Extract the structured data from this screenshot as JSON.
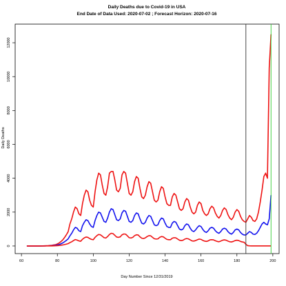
{
  "chart_data": {
    "type": "line",
    "title": "Daily Deaths due to Covid-19 in  USA",
    "subtitle": "End Date of Data Used:  2020-07-02 ; Forecast Horizon:  2020-07-16",
    "xlabel": "Day Number Since 12/31/2019",
    "ylabel": "Daily Deaths",
    "xlim": [
      56.5,
      203.5
    ],
    "ylim": [
      -450,
      13100
    ],
    "xticks": [
      60,
      80,
      100,
      120,
      140,
      160,
      180,
      200
    ],
    "yticks": [
      0,
      2000,
      4000,
      6000,
      8000,
      10000,
      12000
    ],
    "vlines": [
      {
        "value": 185,
        "color": "#333333"
      },
      {
        "value": 199,
        "color": "#33cc33"
      }
    ],
    "x": [
      63,
      64,
      65,
      66,
      67,
      68,
      69,
      70,
      71,
      72,
      73,
      74,
      75,
      76,
      77,
      78,
      79,
      80,
      81,
      82,
      83,
      84,
      85,
      86,
      87,
      88,
      89,
      90,
      91,
      92,
      93,
      94,
      95,
      96,
      97,
      98,
      99,
      100,
      101,
      102,
      103,
      104,
      105,
      106,
      107,
      108,
      109,
      110,
      111,
      112,
      113,
      114,
      115,
      116,
      117,
      118,
      119,
      120,
      121,
      122,
      123,
      124,
      125,
      126,
      127,
      128,
      129,
      130,
      131,
      132,
      133,
      134,
      135,
      136,
      137,
      138,
      139,
      140,
      141,
      142,
      143,
      144,
      145,
      146,
      147,
      148,
      149,
      150,
      151,
      152,
      153,
      154,
      155,
      156,
      157,
      158,
      159,
      160,
      161,
      162,
      163,
      164,
      165,
      166,
      167,
      168,
      169,
      170,
      171,
      172,
      173,
      174,
      175,
      176,
      177,
      178,
      179,
      180,
      181,
      182,
      183,
      184,
      185,
      186,
      187,
      188,
      189,
      190,
      191,
      192,
      193,
      194,
      195,
      196,
      197,
      198,
      199
    ],
    "series": [
      {
        "color": "#ee1111",
        "values": [
          0,
          0,
          0,
          0,
          0,
          0,
          2,
          2,
          4,
          6,
          10,
          15,
          20,
          30,
          40,
          60,
          80,
          120,
          180,
          260,
          360,
          500,
          660,
          840,
          1300,
          1600,
          2000,
          2300,
          2200,
          1900,
          1800,
          2500,
          3000,
          3300,
          3200,
          2700,
          2400,
          2300,
          3200,
          3900,
          4300,
          4200,
          3600,
          3100,
          3000,
          3500,
          4300,
          4400,
          4400,
          3900,
          3300,
          3200,
          3400,
          4200,
          4400,
          4300,
          3700,
          3100,
          3000,
          3200,
          3800,
          4100,
          4000,
          3400,
          2900,
          2800,
          3000,
          3500,
          3800,
          3700,
          3200,
          2700,
          2600,
          2700,
          3200,
          3500,
          3400,
          2900,
          2500,
          2400,
          2400,
          2900,
          3100,
          3000,
          2600,
          2200,
          2100,
          2200,
          2600,
          2800,
          2700,
          2300,
          2000,
          1900,
          2000,
          2400,
          2600,
          2500,
          2100,
          1900,
          1800,
          1900,
          2200,
          2350,
          2250,
          1950,
          1750,
          1650,
          1800,
          2100,
          2250,
          2150,
          1850,
          1650,
          1550,
          1700,
          2000,
          2150,
          2050,
          1750,
          1550,
          1450,
          1400,
          1600,
          1800,
          1700,
          1500,
          1450,
          1600,
          2000,
          2600,
          3300,
          4100,
          4300,
          4000,
          10500,
          12500
        ]
      },
      {
        "color": "#1111ee",
        "values": [
          0,
          0,
          0,
          0,
          0,
          0,
          1,
          1,
          2,
          3,
          5,
          8,
          10,
          15,
          20,
          30,
          40,
          60,
          90,
          130,
          180,
          250,
          330,
          420,
          600,
          750,
          950,
          1100,
          1050,
          900,
          850,
          1200,
          1400,
          1550,
          1500,
          1300,
          1150,
          1100,
          1500,
          1800,
          2000,
          1950,
          1700,
          1450,
          1400,
          1650,
          2000,
          2200,
          2150,
          1850,
          1550,
          1500,
          1600,
          1950,
          2100,
          2050,
          1750,
          1450,
          1400,
          1500,
          1800,
          1950,
          1900,
          1600,
          1350,
          1300,
          1400,
          1650,
          1800,
          1750,
          1500,
          1250,
          1200,
          1250,
          1500,
          1650,
          1600,
          1350,
          1150,
          1100,
          1100,
          1350,
          1450,
          1400,
          1200,
          1000,
          950,
          1000,
          1200,
          1300,
          1250,
          1050,
          900,
          850,
          950,
          1100,
          1200,
          1150,
          980,
          850,
          800,
          900,
          1050,
          1100,
          1050,
          900,
          800,
          750,
          850,
          1000,
          1050,
          1000,
          850,
          750,
          700,
          800,
          950,
          1000,
          950,
          800,
          700,
          650,
          650,
          750,
          850,
          800,
          700,
          680,
          750,
          900,
          1100,
          1300,
          1400,
          1300,
          1250,
          1600,
          3000
        ]
      },
      {
        "color": "#ee1111",
        "values": [
          0,
          0,
          0,
          0,
          0,
          0,
          0,
          0,
          1,
          1,
          2,
          3,
          4,
          5,
          7,
          10,
          14,
          20,
          30,
          45,
          60,
          85,
          110,
          140,
          200,
          250,
          320,
          380,
          350,
          300,
          280,
          400,
          480,
          530,
          510,
          440,
          390,
          370,
          510,
          610,
          680,
          660,
          580,
          490,
          470,
          560,
          680,
          750,
          730,
          630,
          530,
          510,
          540,
          660,
          710,
          700,
          600,
          490,
          470,
          510,
          610,
          660,
          650,
          540,
          460,
          440,
          480,
          560,
          610,
          600,
          510,
          430,
          410,
          420,
          510,
          560,
          540,
          460,
          390,
          370,
          370,
          460,
          490,
          480,
          410,
          340,
          320,
          340,
          410,
          440,
          420,
          360,
          300,
          290,
          320,
          370,
          410,
          390,
          330,
          290,
          270,
          300,
          360,
          370,
          360,
          310,
          270,
          250,
          290,
          340,
          360,
          340,
          290,
          250,
          240,
          270,
          320,
          340,
          320,
          270,
          240,
          220,
          100,
          20,
          10,
          5,
          5,
          5,
          5,
          5,
          5,
          5,
          5,
          5,
          5,
          5,
          5
        ]
      }
    ]
  }
}
